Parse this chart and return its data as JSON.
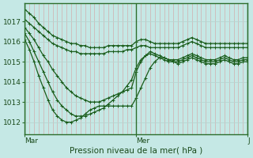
{
  "background_color": "#c5e8e5",
  "grid_color_v": "#d4a0a0",
  "grid_color_h": "#d8ecea",
  "line_color": "#1a5c1a",
  "marker": "+",
  "markersize": 3,
  "linewidth": 0.9,
  "xlabel": "Pression niveau de la mer( hPa )",
  "xlabel_fontsize": 7.5,
  "xtick_labels": [
    "Mar",
    "Mer",
    "J"
  ],
  "ytick_labels": [
    "1012",
    "1013",
    "1014",
    "1015",
    "1016",
    "1017"
  ],
  "ylim": [
    1011.4,
    1017.9
  ],
  "n_points": 49,
  "series": [
    [
      1017.6,
      1017.4,
      1017.2,
      1016.9,
      1016.7,
      1016.5,
      1016.3,
      1016.2,
      1016.1,
      1016.0,
      1015.9,
      1015.9,
      1015.8,
      1015.8,
      1015.7,
      1015.7,
      1015.7,
      1015.7,
      1015.8,
      1015.8,
      1015.8,
      1015.8,
      1015.8,
      1015.8,
      1016.0,
      1016.1,
      1016.1,
      1016.0,
      1015.9,
      1015.9,
      1015.9,
      1015.9,
      1015.9,
      1015.9,
      1016.0,
      1016.1,
      1016.2,
      1016.1,
      1016.0,
      1015.9,
      1015.9,
      1015.9,
      1015.9,
      1015.9,
      1015.9,
      1015.9,
      1015.9,
      1015.9,
      1015.9
    ],
    [
      1017.1,
      1016.9,
      1016.7,
      1016.5,
      1016.3,
      1016.1,
      1015.9,
      1015.8,
      1015.7,
      1015.6,
      1015.5,
      1015.5,
      1015.4,
      1015.4,
      1015.4,
      1015.4,
      1015.4,
      1015.4,
      1015.5,
      1015.5,
      1015.5,
      1015.5,
      1015.6,
      1015.6,
      1015.7,
      1015.8,
      1015.8,
      1015.7,
      1015.7,
      1015.7,
      1015.7,
      1015.7,
      1015.7,
      1015.7,
      1015.8,
      1015.9,
      1016.0,
      1015.9,
      1015.8,
      1015.7,
      1015.7,
      1015.7,
      1015.7,
      1015.7,
      1015.7,
      1015.7,
      1015.7,
      1015.7,
      1015.7
    ],
    [
      1016.7,
      1016.4,
      1016.1,
      1015.7,
      1015.3,
      1015.0,
      1014.6,
      1014.3,
      1014.0,
      1013.7,
      1013.5,
      1013.3,
      1013.2,
      1013.1,
      1013.0,
      1013.0,
      1013.0,
      1013.1,
      1013.2,
      1013.3,
      1013.4,
      1013.5,
      1013.6,
      1013.7,
      1014.5,
      1015.0,
      1015.3,
      1015.5,
      1015.4,
      1015.3,
      1015.2,
      1015.1,
      1015.1,
      1015.1,
      1015.2,
      1015.3,
      1015.4,
      1015.3,
      1015.2,
      1015.1,
      1015.1,
      1015.1,
      1015.2,
      1015.3,
      1015.2,
      1015.1,
      1015.1,
      1015.2,
      1015.2
    ],
    [
      1016.4,
      1016.0,
      1015.5,
      1015.0,
      1014.5,
      1014.0,
      1013.5,
      1013.1,
      1012.8,
      1012.6,
      1012.4,
      1012.3,
      1012.3,
      1012.3,
      1012.4,
      1012.5,
      1012.6,
      1012.7,
      1012.9,
      1013.1,
      1013.3,
      1013.5,
      1013.8,
      1014.1,
      1014.7,
      1015.1,
      1015.3,
      1015.4,
      1015.3,
      1015.2,
      1015.1,
      1015.0,
      1015.0,
      1015.0,
      1015.1,
      1015.2,
      1015.3,
      1015.2,
      1015.1,
      1015.0,
      1015.0,
      1015.0,
      1015.1,
      1015.2,
      1015.1,
      1015.0,
      1015.0,
      1015.1,
      1015.1
    ],
    [
      1016.1,
      1015.6,
      1015.0,
      1014.3,
      1013.7,
      1013.1,
      1012.6,
      1012.3,
      1012.1,
      1012.0,
      1012.0,
      1012.1,
      1012.2,
      1012.4,
      1012.6,
      1012.7,
      1012.8,
      1012.8,
      1012.8,
      1012.8,
      1012.8,
      1012.8,
      1012.8,
      1012.8,
      1013.2,
      1013.7,
      1014.2,
      1014.7,
      1015.0,
      1015.2,
      1015.2,
      1015.1,
      1015.0,
      1014.9,
      1015.0,
      1015.1,
      1015.2,
      1015.1,
      1015.0,
      1014.9,
      1014.9,
      1014.9,
      1015.0,
      1015.1,
      1015.0,
      1014.9,
      1014.9,
      1015.0,
      1015.0
    ]
  ],
  "day_boundaries": [
    0,
    24,
    48
  ],
  "border_color": "#2d6e2d"
}
